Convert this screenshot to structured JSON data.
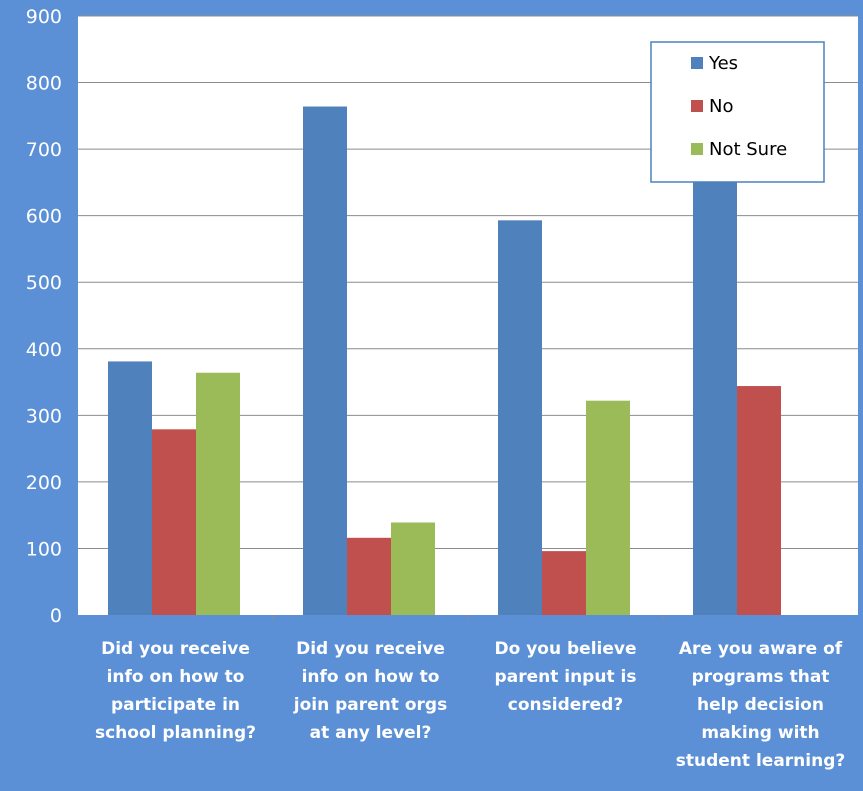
{
  "chart_data": {
    "type": "bar",
    "categories": [
      [
        "Did you receive",
        "info on how to",
        "participate in",
        "school planning?"
      ],
      [
        "Did you receive",
        "info on how to",
        "join parent orgs",
        "at any level?"
      ],
      [
        "Do you believe",
        "parent input is",
        "considered?"
      ],
      [
        "Are you aware of",
        "programs that",
        "help decision",
        "making with",
        "student learning?"
      ]
    ],
    "series": [
      {
        "name": "Yes",
        "color": "#4f81bd",
        "values": [
          381,
          764,
          593,
          651
        ]
      },
      {
        "name": "No",
        "color": "#c0504d",
        "values": [
          279,
          116,
          96,
          344
        ]
      },
      {
        "name": "Not Sure",
        "color": "#9bbb59",
        "values": [
          364,
          139,
          322,
          0
        ]
      }
    ],
    "ylim": [
      0,
      900
    ],
    "yticks": [
      0,
      100,
      200,
      300,
      400,
      500,
      600,
      700,
      800,
      900
    ],
    "grid": true,
    "legend": "top-right",
    "colors": {
      "page_background": "#5b8fd6",
      "plot_background": "#ffffff",
      "gridline": "#8c8c8c"
    }
  }
}
